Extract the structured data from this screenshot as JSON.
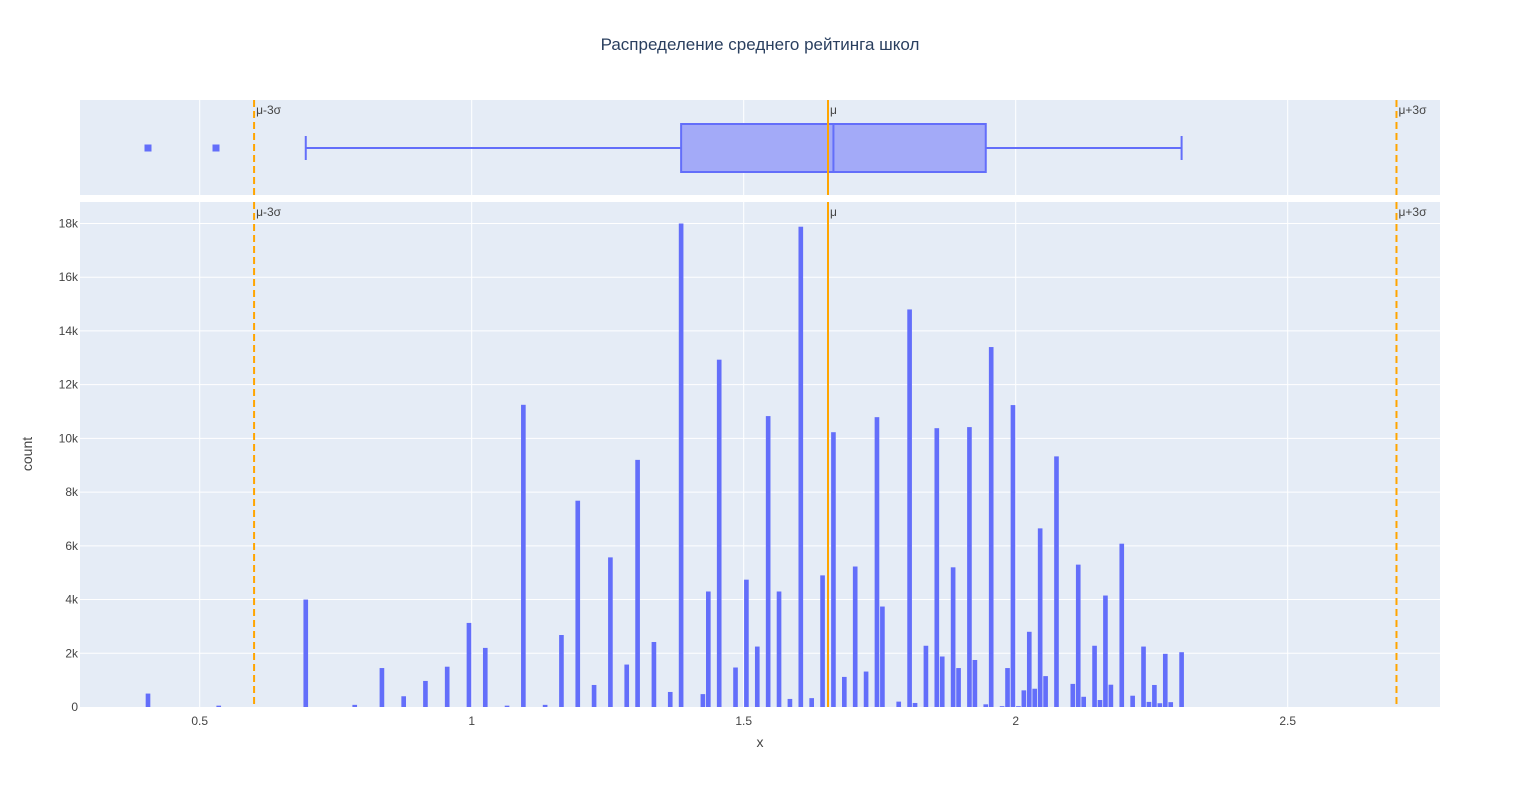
{
  "chart_data": {
    "type": "bar",
    "title": "Распределение среднего рейтинга школ",
    "xlabel": "x",
    "ylabel": "count",
    "xlim": [
      0.28,
      2.78
    ],
    "ylim": [
      0,
      18800
    ],
    "x_ticks": [
      {
        "value": 0.5,
        "label": "0.5"
      },
      {
        "value": 1,
        "label": "1"
      },
      {
        "value": 1.5,
        "label": "1.5"
      },
      {
        "value": 2,
        "label": "2"
      },
      {
        "value": 2.5,
        "label": "2.5"
      }
    ],
    "y_ticks": [
      {
        "value": 0,
        "label": "0"
      },
      {
        "value": 2000,
        "label": "2k"
      },
      {
        "value": 4000,
        "label": "4k"
      },
      {
        "value": 6000,
        "label": "6k"
      },
      {
        "value": 8000,
        "label": "8k"
      },
      {
        "value": 10000,
        "label": "10k"
      },
      {
        "value": 12000,
        "label": "12k"
      },
      {
        "value": 14000,
        "label": "14k"
      },
      {
        "value": 16000,
        "label": "16k"
      },
      {
        "value": 18000,
        "label": "18k"
      }
    ],
    "bin_width": 0.01,
    "bars": [
      {
        "x": 0.405,
        "y": 500
      },
      {
        "x": 0.535,
        "y": 50
      },
      {
        "x": 0.695,
        "y": 4000
      },
      {
        "x": 0.785,
        "y": 80
      },
      {
        "x": 0.835,
        "y": 1450
      },
      {
        "x": 0.875,
        "y": 400
      },
      {
        "x": 0.915,
        "y": 970
      },
      {
        "x": 0.955,
        "y": 1500
      },
      {
        "x": 0.995,
        "y": 3130
      },
      {
        "x": 1.025,
        "y": 2200
      },
      {
        "x": 1.065,
        "y": 50
      },
      {
        "x": 1.095,
        "y": 11250
      },
      {
        "x": 1.135,
        "y": 80
      },
      {
        "x": 1.165,
        "y": 2680
      },
      {
        "x": 1.195,
        "y": 7680
      },
      {
        "x": 1.225,
        "y": 820
      },
      {
        "x": 1.255,
        "y": 5570
      },
      {
        "x": 1.285,
        "y": 1580
      },
      {
        "x": 1.305,
        "y": 9200
      },
      {
        "x": 1.335,
        "y": 2420
      },
      {
        "x": 1.365,
        "y": 560
      },
      {
        "x": 1.385,
        "y": 18000
      },
      {
        "x": 1.425,
        "y": 480
      },
      {
        "x": 1.435,
        "y": 4300
      },
      {
        "x": 1.455,
        "y": 12930
      },
      {
        "x": 1.485,
        "y": 1470
      },
      {
        "x": 1.505,
        "y": 4740
      },
      {
        "x": 1.525,
        "y": 2250
      },
      {
        "x": 1.545,
        "y": 10830
      },
      {
        "x": 1.565,
        "y": 4300
      },
      {
        "x": 1.585,
        "y": 300
      },
      {
        "x": 1.605,
        "y": 17880
      },
      {
        "x": 1.625,
        "y": 330
      },
      {
        "x": 1.645,
        "y": 4900
      },
      {
        "x": 1.665,
        "y": 10230
      },
      {
        "x": 1.685,
        "y": 1120
      },
      {
        "x": 1.705,
        "y": 5230
      },
      {
        "x": 1.725,
        "y": 1320
      },
      {
        "x": 1.745,
        "y": 10790
      },
      {
        "x": 1.755,
        "y": 3740
      },
      {
        "x": 1.785,
        "y": 200
      },
      {
        "x": 1.805,
        "y": 14800
      },
      {
        "x": 1.815,
        "y": 150
      },
      {
        "x": 1.835,
        "y": 2280
      },
      {
        "x": 1.855,
        "y": 10380
      },
      {
        "x": 1.865,
        "y": 1880
      },
      {
        "x": 1.885,
        "y": 5200
      },
      {
        "x": 1.895,
        "y": 1450
      },
      {
        "x": 1.915,
        "y": 10420
      },
      {
        "x": 1.925,
        "y": 1750
      },
      {
        "x": 1.945,
        "y": 100
      },
      {
        "x": 1.955,
        "y": 13400
      },
      {
        "x": 1.975,
        "y": 30
      },
      {
        "x": 1.985,
        "y": 1450
      },
      {
        "x": 1.995,
        "y": 11240
      },
      {
        "x": 2.005,
        "y": 30
      },
      {
        "x": 2.015,
        "y": 620
      },
      {
        "x": 2.025,
        "y": 2800
      },
      {
        "x": 2.035,
        "y": 680
      },
      {
        "x": 2.045,
        "y": 6650
      },
      {
        "x": 2.055,
        "y": 1150
      },
      {
        "x": 2.075,
        "y": 9330
      },
      {
        "x": 2.105,
        "y": 860
      },
      {
        "x": 2.115,
        "y": 5300
      },
      {
        "x": 2.125,
        "y": 380
      },
      {
        "x": 2.145,
        "y": 2280
      },
      {
        "x": 2.155,
        "y": 260
      },
      {
        "x": 2.165,
        "y": 4150
      },
      {
        "x": 2.175,
        "y": 830
      },
      {
        "x": 2.195,
        "y": 6080
      },
      {
        "x": 2.215,
        "y": 420
      },
      {
        "x": 2.235,
        "y": 2250
      },
      {
        "x": 2.245,
        "y": 190
      },
      {
        "x": 2.255,
        "y": 820
      },
      {
        "x": 2.265,
        "y": 140
      },
      {
        "x": 2.275,
        "y": 1980
      },
      {
        "x": 2.285,
        "y": 180
      },
      {
        "x": 2.305,
        "y": 2040
      }
    ],
    "box": {
      "lower_fence": 0.695,
      "q1": 1.385,
      "median": 1.665,
      "q3": 1.945,
      "upper_fence": 2.305,
      "outliers": [
        0.405,
        0.53
      ]
    },
    "reference_lines": [
      {
        "x": 0.6,
        "label": "μ-3σ",
        "style": "dashed"
      },
      {
        "x": 1.655,
        "label": "μ",
        "style": "solid"
      },
      {
        "x": 2.7,
        "label": "μ+3σ",
        "style": "dashed"
      }
    ]
  },
  "colors": {
    "background": "#ffffff",
    "plot_background": "#e5ecf6",
    "grid": "#ffffff",
    "bar": "#636efa",
    "box_fill": "#a3aaf8",
    "reference_line": "#ffa500"
  }
}
